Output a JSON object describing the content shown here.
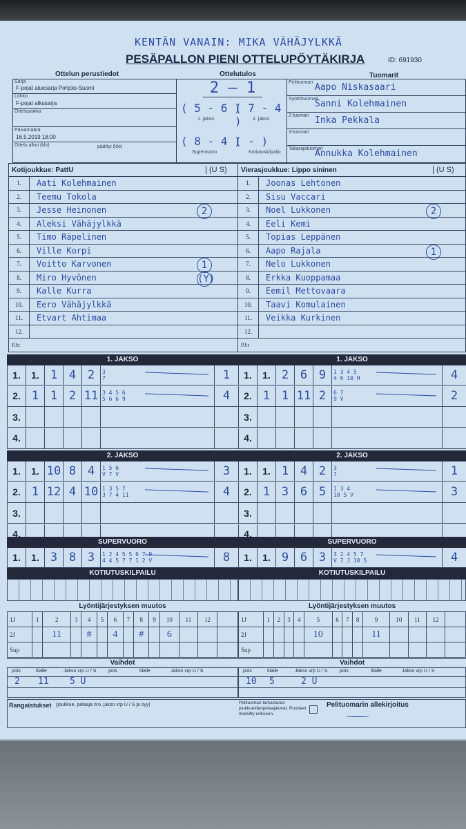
{
  "header": {
    "handwritten_note": "KENTÄN VANAIN: MIKA VÄHÄJYLKKÄ",
    "title": "PESÄPALLON PIENI OTTELUPÖYTÄKIRJA",
    "id": "ID: 691930"
  },
  "basic_info": {
    "section": "Ottelun perustiedot",
    "sarja_label": "Sarja",
    "sarja": "F-pojat aluesarja Pohjois-Suomi",
    "lohko_label": "Lohko",
    "lohko": "F-pojat alkusarja",
    "paikka_label": "Ottelupaikka",
    "date_label": "Päivämäärä",
    "date": "16.5.2019 18:00",
    "start_label": "Ottelu alkoi (klo)",
    "end_label": "päättyi (klo)"
  },
  "result": {
    "section": "Ottelutulos",
    "final": "2 — 1",
    "jakso1": "( 5 - 6 )",
    "jakso1_label": "1. jakso",
    "jakso2": "( 7 - 4 )",
    "jakso2_label": "2. jakso",
    "super": "( 8 - 4 )",
    "super_label": "Supervuoro",
    "kotiutus": "(  -  )",
    "kotiutus_label": "Kotiutuskilpailu"
  },
  "referees": {
    "section": "Tuomarit",
    "items": [
      {
        "label": "Pelituomari",
        "name": "Aapo Niskasaari"
      },
      {
        "label": "Syöttötuomari",
        "name": "Sanni Kolehmainen"
      },
      {
        "label": "2-tuomari",
        "name": "Inka Pekkala"
      },
      {
        "label": "3-tuomari",
        "name": ""
      },
      {
        "label": "Takarajatuomari",
        "name": "Annukka Kolehmainen"
      }
    ]
  },
  "home": {
    "label": "Kotijoukkue: PattU",
    "us": "(U S)",
    "players": [
      "Aati Kolehmainen",
      "Teemu Tokola",
      "Jesse Heinonen",
      "Aleksi Vähäjylkkä",
      "Timo Räpelinen",
      "Ville Korpi",
      "Voitto Karvonen",
      "Miro Hyvönen",
      "Kalle Kurra",
      "Eero Vähäjylkkä",
      "Etvart Ahtimaa",
      ""
    ],
    "marks": {
      "3": "2",
      "7": "1",
      "8": "(Y)"
    },
    "pj": "PJ:t",
    "jakso1": [
      {
        "cells": [
          "1.",
          "1.",
          "1",
          "4",
          "2"
        ],
        "note": "3\n7",
        "total": "1"
      },
      {
        "cells": [
          "2.",
          "1",
          "1",
          "2",
          "11"
        ],
        "note": "3 4 5 6\n5 6 6 9",
        "total": "4"
      },
      {
        "cells": [
          "3.",
          "",
          "",
          "",
          ""
        ],
        "note": "",
        "total": ""
      },
      {
        "cells": [
          "4.",
          "",
          "",
          "",
          ""
        ],
        "note": "",
        "total": ""
      }
    ],
    "jakso2": [
      {
        "cells": [
          "1.",
          "1.",
          "10",
          "8",
          "4"
        ],
        "note": "1 5 6\nV 7 V",
        "total": "3"
      },
      {
        "cells": [
          "2.",
          "1",
          "12",
          "4",
          "10"
        ],
        "note": "1 3 5 7\n3 7 4 11",
        "total": "4"
      },
      {
        "cells": [
          "3.",
          "",
          "",
          "",
          ""
        ],
        "note": "",
        "total": ""
      },
      {
        "cells": [
          "4.",
          "",
          "",
          "",
          ""
        ],
        "note": "",
        "total": ""
      }
    ],
    "super": [
      {
        "cells": [
          "1.",
          "1.",
          "3",
          "8",
          "3"
        ],
        "note": "1 2 4 5 5 6 7 9\n4 4 5 7 7 1 2 V",
        "total": "8"
      }
    ],
    "lineup_2j": [
      "",
      "11",
      "",
      "#",
      "",
      "4",
      "",
      "#",
      "",
      "6",
      "",
      ""
    ],
    "vaihdot": {
      "pois": "2",
      "tilalle": "11",
      "jakso": "5 U"
    }
  },
  "away": {
    "label": "Vierasjoukkue: Lippo sininen",
    "us": "(U S)",
    "players": [
      "Joonas Lehtonen",
      "Sisu Vaccari",
      "Noel Lukkonen",
      "Eeli Kemi",
      "Topias Leppänen",
      "Aapo Rajala",
      "Nelo Lukkonen",
      "Erkka Kuoppamaa",
      "Eemil Mettovaara",
      "Taavi Komulainen",
      "Veikka Kurkinen",
      ""
    ],
    "marks": {
      "3": "2",
      "6": "1"
    },
    "pj": "PJ:t",
    "jakso1": [
      {
        "cells": [
          "1.",
          "1.",
          "2",
          "6",
          "9"
        ],
        "note": "1 3 4 5\n4 6 10 H",
        "total": "4"
      },
      {
        "cells": [
          "2.",
          "1",
          "1",
          "11",
          "2"
        ],
        "note": "6 7\n9 V",
        "total": "2"
      },
      {
        "cells": [
          "3.",
          "",
          "",
          "",
          ""
        ],
        "note": "",
        "total": ""
      },
      {
        "cells": [
          "4.",
          "",
          "",
          "",
          ""
        ],
        "note": "",
        "total": ""
      }
    ],
    "jakso2": [
      {
        "cells": [
          "1.",
          "1.",
          "1",
          "4",
          "2"
        ],
        "note": "3\n7",
        "total": "1"
      },
      {
        "cells": [
          "2.",
          "1",
          "3",
          "6",
          "5"
        ],
        "note": "1 3 4\n10 5 V",
        "total": "3"
      },
      {
        "cells": [
          "3.",
          "",
          "",
          "",
          ""
        ],
        "note": "",
        "total": ""
      },
      {
        "cells": [
          "4.",
          "",
          "",
          "",
          ""
        ],
        "note": "",
        "total": ""
      }
    ],
    "super": [
      {
        "cells": [
          "1.",
          "1.",
          "9",
          "6",
          "3"
        ],
        "note": "3 2 4 5 7\nV 7 J 10 5",
        "total": "4"
      }
    ],
    "lineup_2j": [
      "",
      "",
      "",
      "",
      "10",
      "",
      "",
      "",
      "11",
      "",
      "",
      ""
    ],
    "vaihdot": {
      "pois": "10",
      "tilalle": "5",
      "jakso": "2 U"
    }
  },
  "sections": {
    "jakso1": "1. JAKSO",
    "jakso2": "2. JAKSO",
    "super": "SUPERVUORO",
    "kotiutus": "KOTIUTUSKILPAILU",
    "lineup": "Lyöntijärjestyksen muutos",
    "lineup_rows": [
      "1J",
      "2J",
      "Sup"
    ],
    "lineup_cols": [
      "1",
      "2",
      "3",
      "4",
      "5",
      "6",
      "7",
      "8",
      "9",
      "10",
      "11",
      "12"
    ],
    "vaihdot": "Vaihdot",
    "vaihdot_cols": [
      "pois",
      "tilalle",
      "Jakso vrp U / S",
      "pois",
      "tilalle",
      "Jakso vrp U / S"
    ]
  },
  "footer": {
    "rangaistukset": "Rangaistukset",
    "rangaistukset_hint": "(joukkue, pelaaja nro, jakso vrp U / S ja syy)",
    "check_text": "Pelituomari tarkastanut joukkueidenpelaajaluvat. Puutteet merkitty erikseen.",
    "signature_label": "Pelituomarin allekirjoitus"
  },
  "colors": {
    "ink": "#2b4aa8",
    "paper": "#cfe1f1",
    "bar": "#23293a"
  }
}
